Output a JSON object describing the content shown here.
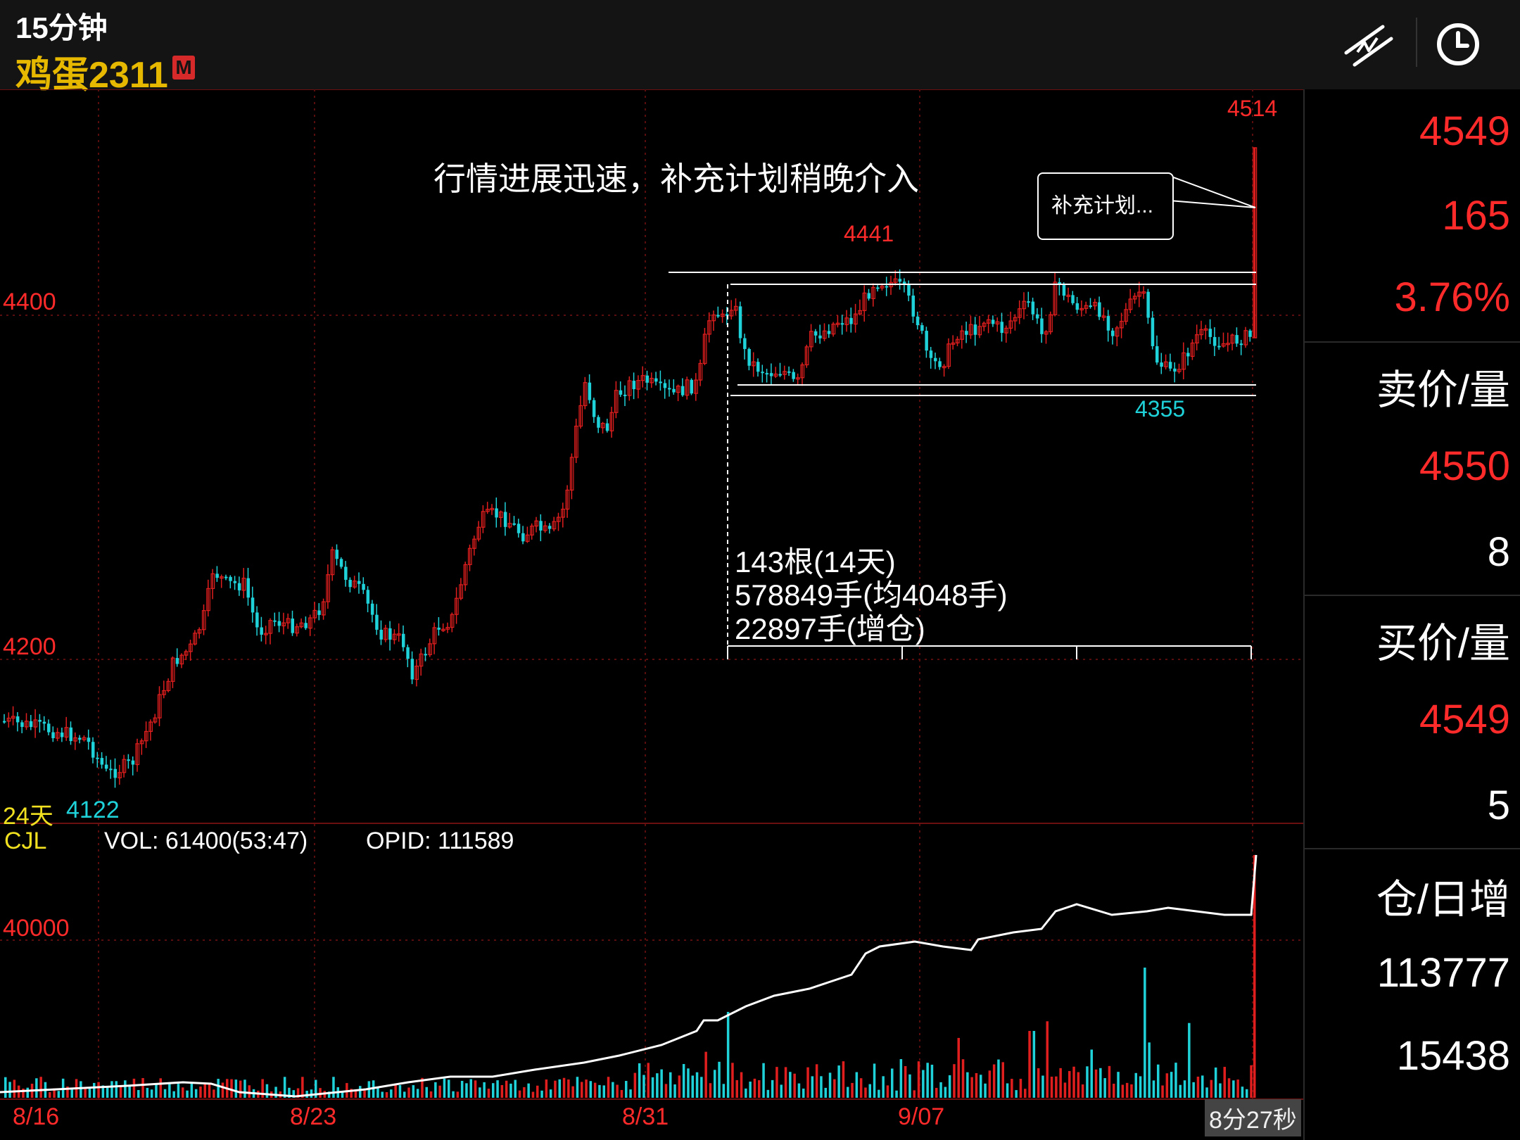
{
  "header": {
    "timeframe": "15分钟",
    "symbol": "鸡蛋2311",
    "badge": "M"
  },
  "icons": {
    "draw_tool": "draw-lines-icon",
    "clock": "clock-icon"
  },
  "colors": {
    "up": "#e01e1e",
    "down": "#1fd1d8",
    "price_label": "#ff2a2a",
    "symbol": "#e6b800",
    "grid": "#5a0d0d"
  },
  "chart": {
    "price_labels": [
      "4400",
      "4200"
    ],
    "high_mark": "4514",
    "range_high_mark": "4441",
    "range_low_mark": "4355",
    "period_low_mark": "4122",
    "period_label": "24天",
    "annotation": "行情进展迅速，补充计划稍晚介入",
    "callout": "补充计划...",
    "stats": [
      "143根(14天)",
      "578849手(均4048手)",
      "22897手(增仓)"
    ],
    "volume_indicator": "CJL",
    "volume_text": "VOL: 61400(53:47)",
    "opid_text": "OPID: 111589",
    "volume_axis_label": "40000",
    "dates": [
      "8/16",
      "8/23",
      "8/31",
      "9/07"
    ],
    "countdown": "8分27秒"
  },
  "right_panel": {
    "last_price": "4549",
    "change": "165",
    "change_pct": "3.76%",
    "ask_label": "卖价/量",
    "ask_price": "4550",
    "ask_volume": "8",
    "bid_label": "买价/量",
    "bid_price": "4549",
    "bid_volume": "5",
    "oi_label": "仓/日增",
    "open_interest": "113777",
    "oi_increase": "15438"
  }
}
